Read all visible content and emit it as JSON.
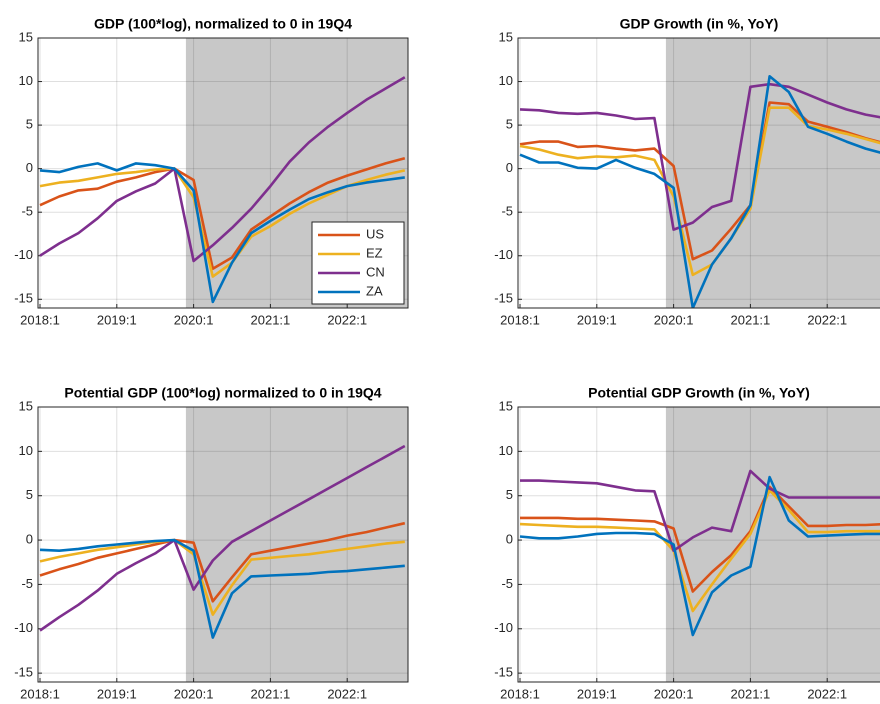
{
  "chart_data": [
    {
      "type": "line",
      "title": "GDP (100*log), normalized to 0 in 19Q4",
      "categories": [
        "2018:1",
        null,
        null,
        null,
        "2019:1",
        null,
        null,
        null,
        "2020:1",
        null,
        null,
        null,
        "2021:1",
        null,
        null,
        null,
        "2022:1",
        null,
        null,
        null
      ],
      "ylim": [
        -16,
        15
      ],
      "yticks": [
        -15,
        -10,
        -5,
        0,
        5,
        10,
        15
      ],
      "grid": true,
      "legend": "lower right",
      "series": [
        {
          "name": "US",
          "color": "#d95319",
          "values": [
            -4.2,
            -3.2,
            -2.5,
            -2.3,
            -1.5,
            -1.0,
            -0.4,
            0,
            -1.3,
            -11.5,
            -10.2,
            -7.0,
            -5.5,
            -4.0,
            -2.7,
            -1.6,
            -0.8,
            -0.1,
            0.6,
            1.2
          ]
        },
        {
          "name": "EZ",
          "color": "#edb120",
          "values": [
            -2.0,
            -1.6,
            -1.4,
            -1.0,
            -0.6,
            -0.4,
            -0.1,
            0,
            -3.3,
            -12.4,
            -10.8,
            -7.8,
            -6.6,
            -5.2,
            -4.0,
            -3.0,
            -2.0,
            -1.3,
            -0.7,
            -0.2
          ]
        },
        {
          "name": "CN",
          "color": "#7e2f8e",
          "values": [
            -10.0,
            -8.6,
            -7.4,
            -5.7,
            -3.7,
            -2.6,
            -1.7,
            0,
            -10.6,
            -8.8,
            -6.8,
            -4.6,
            -2.0,
            0.8,
            3.0,
            4.8,
            6.4,
            7.9,
            9.2,
            10.5
          ]
        },
        {
          "name": "ZA",
          "color": "#0072bd",
          "values": [
            -0.2,
            -0.4,
            0.2,
            0.6,
            -0.2,
            0.6,
            0.4,
            0,
            -2.5,
            -15.3,
            -10.8,
            -7.4,
            -6.0,
            -4.7,
            -3.5,
            -2.7,
            -2.0,
            -1.6,
            -1.3,
            -1.0
          ]
        }
      ]
    },
    {
      "type": "line",
      "title": "GDP Growth (in %, YoY)",
      "categories": [
        "2018:1",
        null,
        null,
        null,
        "2019:1",
        null,
        null,
        null,
        "2020:1",
        null,
        null,
        null,
        "2021:1",
        null,
        null,
        null,
        "2022:1",
        null,
        null,
        null
      ],
      "ylim": [
        -16,
        15
      ],
      "yticks": [
        -15,
        -10,
        -5,
        0,
        5,
        10,
        15
      ],
      "grid": true,
      "series": [
        {
          "name": "US",
          "color": "#d95319",
          "values": [
            2.8,
            3.1,
            3.1,
            2.5,
            2.6,
            2.3,
            2.1,
            2.3,
            0.3,
            -10.4,
            -9.4,
            -6.9,
            -4.2,
            7.6,
            7.4,
            5.4,
            4.8,
            4.2,
            3.5,
            2.9
          ]
        },
        {
          "name": "EZ",
          "color": "#edb120",
          "values": [
            2.6,
            2.2,
            1.6,
            1.2,
            1.4,
            1.3,
            1.5,
            1.0,
            -3.2,
            -12.2,
            -11.0,
            -8.0,
            -4.6,
            7.0,
            7.0,
            4.9,
            4.5,
            4.0,
            3.4,
            2.8
          ]
        },
        {
          "name": "CN",
          "color": "#7e2f8e",
          "values": [
            6.8,
            6.7,
            6.4,
            6.3,
            6.4,
            6.1,
            5.7,
            5.8,
            -7.0,
            -6.2,
            -4.4,
            -3.7,
            9.4,
            9.7,
            9.4,
            8.5,
            7.6,
            6.8,
            6.2,
            5.8
          ]
        },
        {
          "name": "ZA",
          "color": "#0072bd",
          "values": [
            1.6,
            0.7,
            0.7,
            0.1,
            0.0,
            1.0,
            0.1,
            -0.6,
            -2.2,
            -16.0,
            -11.0,
            -8.0,
            -4.2,
            10.6,
            8.8,
            4.8,
            4.0,
            3.1,
            2.3,
            1.7
          ]
        }
      ]
    },
    {
      "type": "line",
      "title": "Potential GDP (100*log) normalized to 0 in 19Q4",
      "categories": [
        "2018:1",
        null,
        null,
        null,
        "2019:1",
        null,
        null,
        null,
        "2020:1",
        null,
        null,
        null,
        "2021:1",
        null,
        null,
        null,
        "2022:1",
        null,
        null,
        null
      ],
      "ylim": [
        -16,
        15
      ],
      "yticks": [
        -15,
        -10,
        -5,
        0,
        5,
        10,
        15
      ],
      "grid": true,
      "series": [
        {
          "name": "US",
          "color": "#d95319",
          "values": [
            -4.0,
            -3.3,
            -2.7,
            -2.0,
            -1.5,
            -1.0,
            -0.5,
            0,
            -0.3,
            -6.9,
            -4.2,
            -1.6,
            -1.2,
            -0.8,
            -0.4,
            0.0,
            0.5,
            0.9,
            1.4,
            1.9
          ]
        },
        {
          "name": "EZ",
          "color": "#edb120",
          "values": [
            -2.4,
            -1.9,
            -1.5,
            -1.1,
            -0.8,
            -0.5,
            -0.2,
            0,
            -1.6,
            -8.4,
            -5.1,
            -2.2,
            -2.0,
            -1.8,
            -1.6,
            -1.3,
            -1.0,
            -0.7,
            -0.4,
            -0.2
          ]
        },
        {
          "name": "CN",
          "color": "#7e2f8e",
          "values": [
            -10.2,
            -8.7,
            -7.3,
            -5.7,
            -3.8,
            -2.6,
            -1.5,
            0,
            -5.6,
            -2.3,
            -0.2,
            1.0,
            2.2,
            3.4,
            4.6,
            5.8,
            7.0,
            8.2,
            9.4,
            10.6
          ]
        },
        {
          "name": "ZA",
          "color": "#0072bd",
          "values": [
            -1.1,
            -1.2,
            -1.0,
            -0.7,
            -0.5,
            -0.3,
            -0.1,
            0,
            -1.2,
            -11.0,
            -6.0,
            -4.1,
            -4.0,
            -3.9,
            -3.8,
            -3.6,
            -3.5,
            -3.3,
            -3.1,
            -2.9
          ]
        }
      ]
    },
    {
      "type": "line",
      "title": "Potential GDP Growth (in %, YoY)",
      "categories": [
        "2018:1",
        null,
        null,
        null,
        "2019:1",
        null,
        null,
        null,
        "2020:1",
        null,
        null,
        null,
        "2021:1",
        null,
        null,
        null,
        "2022:1",
        null,
        null,
        null
      ],
      "ylim": [
        -16,
        15
      ],
      "yticks": [
        -15,
        -10,
        -5,
        0,
        5,
        10,
        15
      ],
      "grid": true,
      "series": [
        {
          "name": "US",
          "color": "#d95319",
          "values": [
            2.5,
            2.5,
            2.5,
            2.4,
            2.4,
            2.3,
            2.2,
            2.1,
            1.3,
            -5.8,
            -3.6,
            -1.7,
            1.0,
            6.0,
            3.8,
            1.6,
            1.6,
            1.7,
            1.7,
            1.8
          ]
        },
        {
          "name": "EZ",
          "color": "#edb120",
          "values": [
            1.8,
            1.7,
            1.6,
            1.5,
            1.5,
            1.4,
            1.3,
            1.2,
            -1.2,
            -8.0,
            -5.0,
            -2.1,
            0.7,
            5.6,
            3.4,
            0.9,
            0.9,
            1.0,
            1.0,
            1.0
          ]
        },
        {
          "name": "CN",
          "color": "#7e2f8e",
          "values": [
            6.7,
            6.7,
            6.6,
            6.5,
            6.4,
            6.0,
            5.6,
            5.5,
            -1.2,
            0.3,
            1.4,
            1.0,
            7.8,
            5.8,
            4.8,
            4.8,
            4.8,
            4.8,
            4.8,
            4.8
          ]
        },
        {
          "name": "ZA",
          "color": "#0072bd",
          "values": [
            0.4,
            0.2,
            0.2,
            0.4,
            0.7,
            0.8,
            0.8,
            0.7,
            -0.5,
            -10.7,
            -5.9,
            -4.0,
            -3.0,
            7.1,
            2.2,
            0.4,
            0.5,
            0.6,
            0.7,
            0.7
          ]
        }
      ]
    }
  ]
}
